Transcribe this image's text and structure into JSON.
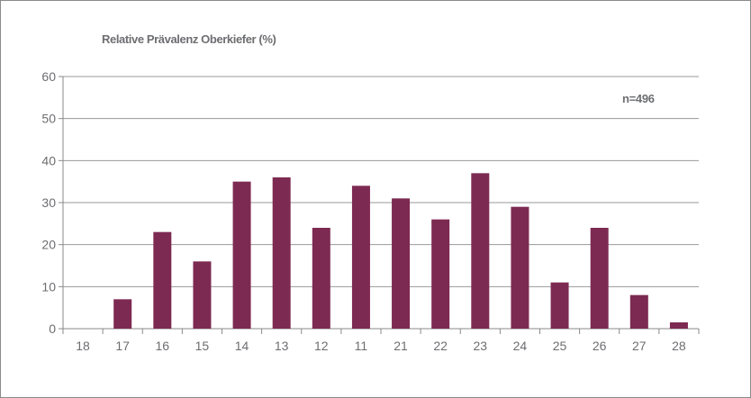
{
  "chart_data": {
    "type": "bar",
    "title": "Relative Prävalenz Oberkiefer (%)",
    "annotation": "n=496",
    "categories": [
      "18",
      "17",
      "16",
      "15",
      "14",
      "13",
      "12",
      "11",
      "21",
      "22",
      "23",
      "24",
      "25",
      "26",
      "27",
      "28"
    ],
    "values": [
      0,
      7,
      23,
      16,
      35,
      36,
      24,
      34,
      31,
      26,
      37,
      29,
      11,
      24,
      8,
      1.5
    ],
    "ylim": [
      0,
      60
    ],
    "yticks": [
      0,
      10,
      20,
      30,
      40,
      50,
      60
    ],
    "grid": true,
    "legend": "none"
  },
  "colors": {
    "bar": "#7d2a52",
    "grid": "#9a9a9a",
    "text": "#6d6e71",
    "axis": "#8a8a8a"
  }
}
